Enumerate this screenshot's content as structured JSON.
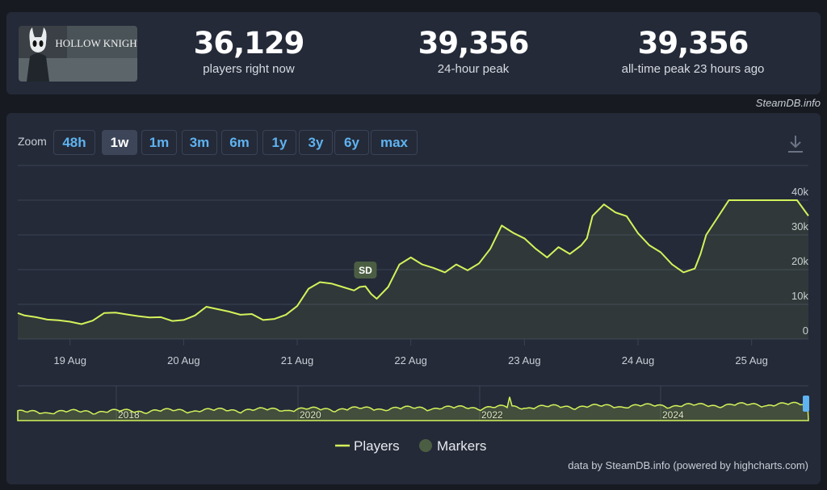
{
  "header": {
    "game_image_alt": "HOLLOW KNIGHT",
    "stats": [
      {
        "value": "36,129",
        "label": "players right now"
      },
      {
        "value": "39,356",
        "label": "24-hour peak"
      },
      {
        "value": "39,356",
        "label": "all-time peak 23 hours ago"
      }
    ],
    "credit": "SteamDB.info"
  },
  "zoom": {
    "label": "Zoom",
    "buttons": [
      "48h",
      "1w",
      "1m",
      "3m",
      "6m",
      "1y",
      "3y",
      "6y",
      "max"
    ],
    "active": "1w"
  },
  "legend": {
    "players": "Players",
    "markers": "Markers"
  },
  "footer_credit": "data by SteamDB.info (powered by highcharts.com)",
  "colors": {
    "line": "#d4f25a",
    "marker": "#4b5e43",
    "panel": "#242a38",
    "background": "#171a21",
    "button_text": "#5fb3f0"
  },
  "chart_data": {
    "type": "line",
    "title": "",
    "ylabel": "",
    "ylim": [
      0,
      40000
    ],
    "y_ticks": [
      "0",
      "10k",
      "20k",
      "30k",
      "40k"
    ],
    "x_ticks": [
      "19 Aug",
      "20 Aug",
      "21 Aug",
      "22 Aug",
      "23 Aug",
      "24 Aug",
      "25 Aug"
    ],
    "x_range_days": [
      18.54,
      25.5
    ],
    "series": [
      {
        "name": "Players",
        "x": [
          18.54,
          18.6,
          18.7,
          18.8,
          18.9,
          19.0,
          19.1,
          19.2,
          19.3,
          19.4,
          19.5,
          19.6,
          19.7,
          19.8,
          19.9,
          20.0,
          20.1,
          20.2,
          20.3,
          20.4,
          20.5,
          20.6,
          20.7,
          20.8,
          20.9,
          21.0,
          21.1,
          21.2,
          21.3,
          21.4,
          21.5,
          21.55,
          21.6,
          21.65,
          21.7,
          21.8,
          21.9,
          22.0,
          22.1,
          22.2,
          22.3,
          22.4,
          22.5,
          22.6,
          22.7,
          22.8,
          22.9,
          23.0,
          23.1,
          23.2,
          23.3,
          23.4,
          23.5,
          23.55,
          23.6,
          23.7,
          23.8,
          23.9,
          24.0,
          24.1,
          24.2,
          24.3,
          24.4,
          24.5,
          24.55,
          24.6,
          24.7,
          24.8,
          24.9,
          25.0,
          25.1,
          25.15,
          25.2,
          25.3,
          25.4,
          25.5
        ],
        "y": [
          7500,
          6800,
          6300,
          5600,
          5400,
          5000,
          4300,
          5300,
          7500,
          7600,
          7100,
          6600,
          6200,
          6300,
          5200,
          5500,
          6800,
          9300,
          8600,
          7900,
          7000,
          7200,
          5500,
          5800,
          7000,
          9500,
          14500,
          16400,
          16000,
          15000,
          14000,
          15000,
          15200,
          13000,
          11600,
          15000,
          21500,
          23500,
          21500,
          20500,
          19200,
          21500,
          19800,
          21800,
          26000,
          32700,
          30600,
          29000,
          26000,
          23500,
          26500,
          24500,
          27000,
          29000,
          35500,
          38800,
          36500,
          35400,
          30500,
          27000,
          25000,
          21500,
          19200,
          20300,
          24500,
          30000,
          35000,
          40000,
          40000,
          40000,
          40000,
          40000,
          40000,
          40000,
          40000,
          35500
        ]
      }
    ],
    "annotations": [
      {
        "x": 21.6,
        "label": "SD"
      }
    ],
    "navigator": {
      "year_labels": [
        "2018",
        "2020",
        "2022",
        "2024"
      ]
    }
  }
}
